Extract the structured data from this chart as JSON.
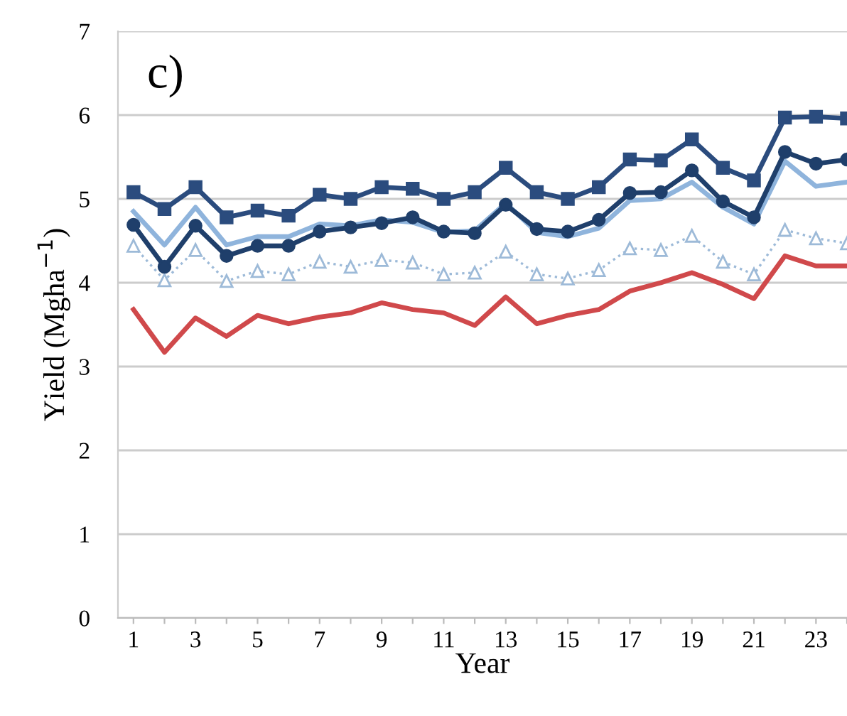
{
  "chart_data": {
    "type": "line",
    "xlabel": "Year",
    "ylabel": "Yield (Mgha$^{−1}$)",
    "annotations": [
      "c)"
    ],
    "categories": [
      "1",
      null,
      "3",
      null,
      "5",
      null,
      "7",
      null,
      "9",
      null,
      "11",
      null,
      "13",
      null,
      "15",
      null,
      "17",
      null,
      "19",
      null,
      "21",
      null,
      "23",
      null
    ],
    "ylim": [
      0,
      7
    ],
    "yticks": [
      0,
      1,
      2,
      3,
      4,
      5,
      6,
      7
    ],
    "grid": "y",
    "legend": false,
    "series": [
      {
        "color": "#d0494b",
        "marker": "none",
        "line_style": "solid",
        "values": [
          3.68,
          3.17,
          3.58,
          3.36,
          3.61,
          3.51,
          3.59,
          3.64,
          3.76,
          3.68,
          3.64,
          3.49,
          3.83,
          3.51,
          3.61,
          3.68,
          3.9,
          4.0,
          4.12,
          3.98,
          3.81,
          4.32,
          4.2,
          4.2
        ]
      },
      {
        "color": "#9dbad8",
        "marker": "triangle",
        "line_style": "dotted",
        "values": [
          4.44,
          4.03,
          4.39,
          4.02,
          4.14,
          4.1,
          4.25,
          4.19,
          4.27,
          4.24,
          4.1,
          4.12,
          4.37,
          4.1,
          4.05,
          4.15,
          4.41,
          4.39,
          4.56,
          4.25,
          4.1,
          4.63,
          4.53,
          4.47
        ]
      },
      {
        "color": "#8fb4dc",
        "marker": "none",
        "line_style": "solid",
        "values": [
          4.85,
          4.45,
          4.9,
          4.45,
          4.55,
          4.55,
          4.7,
          4.68,
          4.75,
          4.72,
          4.6,
          4.62,
          4.95,
          4.6,
          4.55,
          4.65,
          4.98,
          5.0,
          5.2,
          4.9,
          4.7,
          5.45,
          5.15,
          5.2
        ]
      },
      {
        "color": "#1f3f6b",
        "marker": "circle",
        "line_style": "solid",
        "values": [
          4.69,
          4.19,
          4.68,
          4.32,
          4.44,
          4.44,
          4.61,
          4.66,
          4.71,
          4.78,
          4.61,
          4.59,
          4.93,
          4.64,
          4.61,
          4.75,
          5.07,
          5.08,
          5.34,
          4.97,
          4.78,
          5.56,
          5.42,
          5.47
        ]
      },
      {
        "color": "#2b4c7e",
        "marker": "square",
        "line_style": "solid",
        "values": [
          5.08,
          4.88,
          5.14,
          4.78,
          4.86,
          4.8,
          5.05,
          5.0,
          5.14,
          5.12,
          5.0,
          5.08,
          5.37,
          5.08,
          5.0,
          5.14,
          5.47,
          5.46,
          5.71,
          5.37,
          5.22,
          5.97,
          5.98,
          5.96
        ]
      }
    ]
  }
}
